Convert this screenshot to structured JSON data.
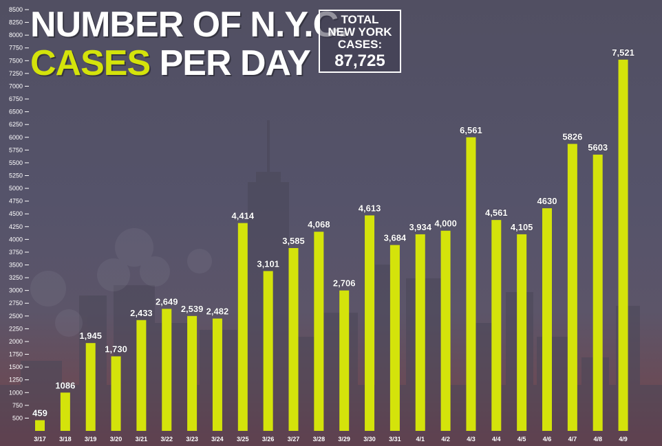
{
  "title": {
    "line1": "NUMBER OF N.Y.C.",
    "line2_accent": "CASES",
    "line2_rest": " PER DAY"
  },
  "total_box": {
    "label_line1": "TOTAL",
    "label_line2": "NEW YORK",
    "label_line3": "CASES:",
    "value": "87,725"
  },
  "colors": {
    "bar": "#d4e30b",
    "accent_text": "#d4e30b",
    "label_text": "#ffffff",
    "axis_text": "#ffffff"
  },
  "chart_data": {
    "type": "bar",
    "categories": [
      "3/17",
      "3/18",
      "3/19",
      "3/20",
      "3/21",
      "3/22",
      "3/23",
      "3/24",
      "3/25",
      "3/26",
      "3/27",
      "3/28",
      "3/29",
      "3/30",
      "3/31",
      "4/1",
      "4/2",
      "4/3",
      "4/4",
      "4/5",
      "4/6",
      "4/7",
      "4/8",
      "4/9"
    ],
    "values": [
      459,
      1086,
      1945,
      1730,
      2433,
      2649,
      2539,
      2482,
      4414,
      3101,
      3585,
      4068,
      2706,
      4613,
      3684,
      3934,
      4000,
      6561,
      4561,
      4105,
      4630,
      5826,
      5603,
      7521
    ],
    "bar_heights": [
      459,
      1000,
      1970,
      1710,
      2420,
      2640,
      2500,
      2450,
      4320,
      3380,
      3830,
      4150,
      3000,
      4470,
      3890,
      4100,
      4170,
      6000,
      4380,
      4100,
      4610,
      5870,
      5660,
      7520
    ],
    "data_labels": [
      "459",
      "1086",
      "1,945",
      "1,730",
      "2,433",
      "2,649",
      "2,539",
      "2,482",
      "4,414",
      "3,101",
      "3,585",
      "4,068",
      "2,706",
      "4,613",
      "3,684",
      "3,934",
      "4,000",
      "6,561",
      "4,561",
      "4,105",
      "4630",
      "5826",
      "5603",
      "7,521"
    ],
    "y_ticks": [
      500,
      750,
      1000,
      1250,
      1500,
      1750,
      2000,
      2250,
      2500,
      2750,
      3000,
      3250,
      3500,
      3750,
      4000,
      4250,
      4500,
      4750,
      5000,
      5250,
      5500,
      5750,
      6000,
      6250,
      6500,
      6750,
      7000,
      7250,
      7500,
      7750,
      8000,
      8250,
      8500
    ],
    "ylim": [
      250,
      8500
    ],
    "title": "NUMBER OF N.Y.C. CASES PER DAY",
    "xlabel": "",
    "ylabel": "",
    "grid": false,
    "legend": "none"
  }
}
